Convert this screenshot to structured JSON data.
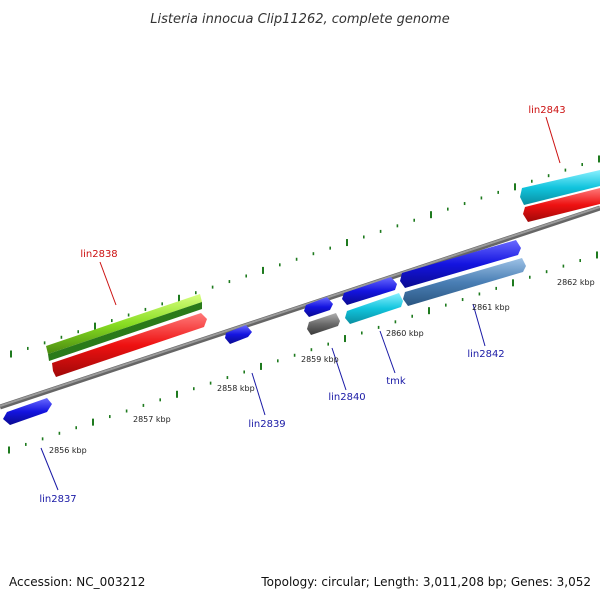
{
  "title": "Listeria innocua Clip11262, complete genome",
  "footer": {
    "accession": "Accession: NC_003212",
    "summary": "Topology: circular; Length: 3,011,208 bp; Genes: 3,052"
  },
  "axis": {
    "ticks": [
      {
        "label": "2856 kbp"
      },
      {
        "label": "2857 kbp"
      },
      {
        "label": "2858 kbp"
      },
      {
        "label": "2859 kbp"
      },
      {
        "label": "2860 kbp"
      },
      {
        "label": "2861 kbp"
      },
      {
        "label": "2862 kbp"
      }
    ]
  },
  "genes": [
    {
      "label": "lin2837",
      "label_color": "#1a1aa6"
    },
    {
      "label": "lin2838",
      "label_color": "#cc1111"
    },
    {
      "label": "lin2839",
      "label_color": "#1a1aa6"
    },
    {
      "label": "lin2840",
      "label_color": "#1a1aa6"
    },
    {
      "label": "tmk",
      "label_color": "#1a1aa6"
    },
    {
      "label": "lin2842",
      "label_color": "#1a1aa6"
    },
    {
      "label": "lin2843",
      "label_color": "#cc1111"
    }
  ],
  "colors": {
    "backbone": "#888888",
    "dots": "#1e7a1e",
    "blue": "#1414e0",
    "red": "#ee1111",
    "green": "#88dd22",
    "cyan": "#11c4dd",
    "steel": "#4a7fb5",
    "gray": "#6a6a6a"
  }
}
